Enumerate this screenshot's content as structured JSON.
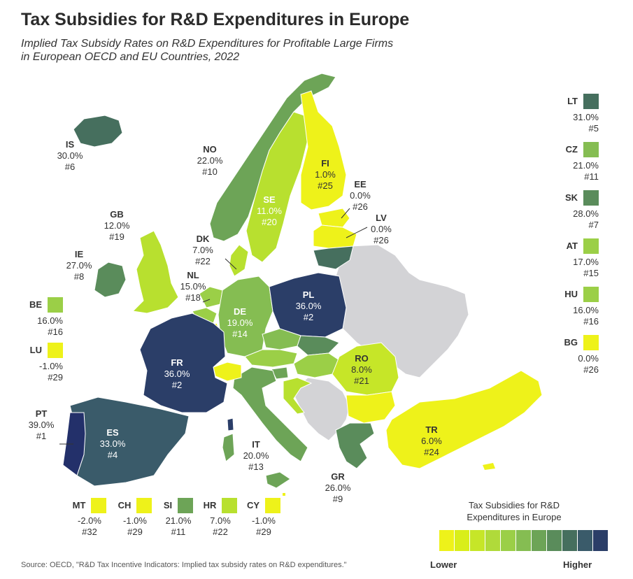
{
  "title": "Tax Subsidies for R&D Expenditures in Europe",
  "subtitle_line1": "Implied Tax Subsidy Rates on R&D Expenditures for Profitable Large Firms",
  "subtitle_line2": "in European OECD and EU Countries, 2022",
  "colors": {
    "c1": "#eef21a",
    "c2": "#d9ee1a",
    "c3": "#b8e02f",
    "c4": "#9bcf47",
    "c5": "#85bd52",
    "c6": "#6da457",
    "c7": "#5a8c5b",
    "c8": "#466f5e",
    "c9": "#3a5b6a",
    "c10": "#2b3e68",
    "c11": "#23306a",
    "grey": "#d3d3d6"
  },
  "map_labels": {
    "IS": {
      "code": "IS",
      "rate": "30.0%",
      "rank": "#6"
    },
    "NO": {
      "code": "NO",
      "rate": "22.0%",
      "rank": "#10"
    },
    "FI": {
      "code": "FI",
      "rate": "1.0%",
      "rank": "#25"
    },
    "SE": {
      "code": "SE",
      "rate": "11.0%",
      "rank": "#20"
    },
    "EE": {
      "code": "EE",
      "rate": "0.0%",
      "rank": "#26"
    },
    "LV": {
      "code": "LV",
      "rate": "0.0%",
      "rank": "#26"
    },
    "GB": {
      "code": "GB",
      "rate": "12.0%",
      "rank": "#19"
    },
    "DK": {
      "code": "DK",
      "rate": "7.0%",
      "rank": "#22"
    },
    "IE": {
      "code": "IE",
      "rate": "27.0%",
      "rank": "#8"
    },
    "NL": {
      "code": "NL",
      "rate": "15.0%",
      "rank": "#18"
    },
    "PL": {
      "code": "PL",
      "rate": "36.0%",
      "rank": "#2"
    },
    "DE": {
      "code": "DE",
      "rate": "19.0%",
      "rank": "#14"
    },
    "FR": {
      "code": "FR",
      "rate": "36.0%",
      "rank": "#2"
    },
    "RO": {
      "code": "RO",
      "rate": "8.0%",
      "rank": "#21"
    },
    "PT": {
      "code": "PT",
      "rate": "39.0%",
      "rank": "#1"
    },
    "ES": {
      "code": "ES",
      "rate": "33.0%",
      "rank": "#4"
    },
    "IT": {
      "code": "IT",
      "rate": "20.0%",
      "rank": "#13"
    },
    "TR": {
      "code": "TR",
      "rate": "6.0%",
      "rank": "#24"
    },
    "GR": {
      "code": "GR",
      "rate": "26.0%",
      "rank": "#9"
    }
  },
  "side_boxes": {
    "LT": {
      "code": "LT",
      "rate": "31.0%",
      "rank": "#5",
      "color": "#466f5e"
    },
    "CZ": {
      "code": "CZ",
      "rate": "21.0%",
      "rank": "#11",
      "color": "#85bd52"
    },
    "SK": {
      "code": "SK",
      "rate": "28.0%",
      "rank": "#7",
      "color": "#5a8c5b"
    },
    "AT": {
      "code": "AT",
      "rate": "17.0%",
      "rank": "#15",
      "color": "#9bcf47"
    },
    "HU": {
      "code": "HU",
      "rate": "16.0%",
      "rank": "#16",
      "color": "#9bcf47"
    },
    "BG": {
      "code": "BG",
      "rate": "0.0%",
      "rank": "#26",
      "color": "#eef21a"
    },
    "BE": {
      "code": "BE",
      "rate": "16.0%",
      "rank": "#16",
      "color": "#9bcf47"
    },
    "LU": {
      "code": "LU",
      "rate": "-1.0%",
      "rank": "#29",
      "color": "#eef21a"
    }
  },
  "bottom_boxes": {
    "MT": {
      "code": "MT",
      "rate": "-2.0%",
      "rank": "#32",
      "color": "#eef21a"
    },
    "CH": {
      "code": "CH",
      "rate": "-1.0%",
      "rank": "#29",
      "color": "#eef21a"
    },
    "SI": {
      "code": "SI",
      "rate": "21.0%",
      "rank": "#11",
      "color": "#6da457"
    },
    "HR": {
      "code": "HR",
      "rate": "7.0%",
      "rank": "#22",
      "color": "#b8e02f"
    },
    "CY": {
      "code": "CY",
      "rate": "-1.0%",
      "rank": "#29",
      "color": "#eef21a"
    }
  },
  "legend": {
    "title_line1": "Tax Subsidies for R&D",
    "title_line2": "Expenditures in Europe",
    "low": "Lower",
    "high": "Higher",
    "steps": [
      "#eef21a",
      "#d9ee1a",
      "#c6e628",
      "#b0da3a",
      "#9bcf47",
      "#85bd52",
      "#6da457",
      "#5a8c5b",
      "#466f5e",
      "#3a5b6a",
      "#2b3e68"
    ]
  },
  "source": "Source: OECD, \"R&D Tax Incentive Indicators: Implied tax subsidy rates on R&D expenditures.\""
}
